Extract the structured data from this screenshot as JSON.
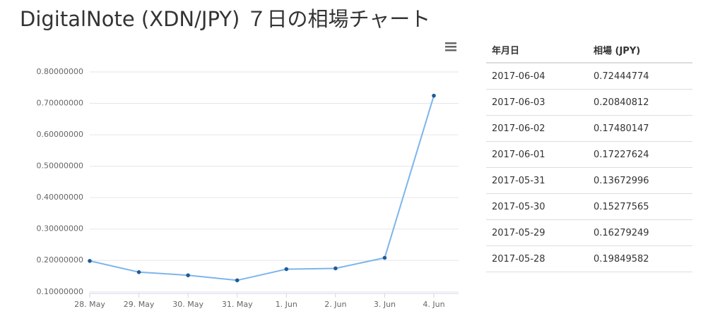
{
  "title": "DigitalNote (XDN/JPY) ７日の相場チャート",
  "chart_data": {
    "type": "line",
    "categories": [
      "28. May",
      "29. May",
      "30. May",
      "31. May",
      "1. Jun",
      "2. Jun",
      "3. Jun",
      "4. Jun"
    ],
    "series": [
      {
        "color": "#7cb5ec",
        "values": [
          0.19849582,
          0.16279249,
          0.15277565,
          0.13672996,
          0.17227624,
          0.17480147,
          0.20840812,
          0.72444774
        ]
      }
    ],
    "ylim": [
      0.095,
      0.8
    ],
    "yticks": [
      {
        "value": 0.1,
        "label": "0.10000000"
      },
      {
        "value": 0.2,
        "label": "0.20000000"
      },
      {
        "value": 0.3,
        "label": "0.30000000"
      },
      {
        "value": 0.4,
        "label": "0.40000000"
      },
      {
        "value": 0.5,
        "label": "0.50000000"
      },
      {
        "value": 0.6,
        "label": "0.60000000"
      },
      {
        "value": 0.7,
        "label": "0.70000000"
      },
      {
        "value": 0.8,
        "label": "0.80000000"
      }
    ],
    "grid": true
  },
  "table": {
    "headers": [
      "年月日",
      "相場 (JPY)"
    ],
    "rows": [
      [
        "2017-06-04",
        "0.72444774"
      ],
      [
        "2017-06-03",
        "0.20840812"
      ],
      [
        "2017-06-02",
        "0.17480147"
      ],
      [
        "2017-06-01",
        "0.17227624"
      ],
      [
        "2017-05-31",
        "0.13672996"
      ],
      [
        "2017-05-30",
        "0.15277565"
      ],
      [
        "2017-05-29",
        "0.16279249"
      ],
      [
        "2017-05-28",
        "0.19849582"
      ]
    ]
  }
}
